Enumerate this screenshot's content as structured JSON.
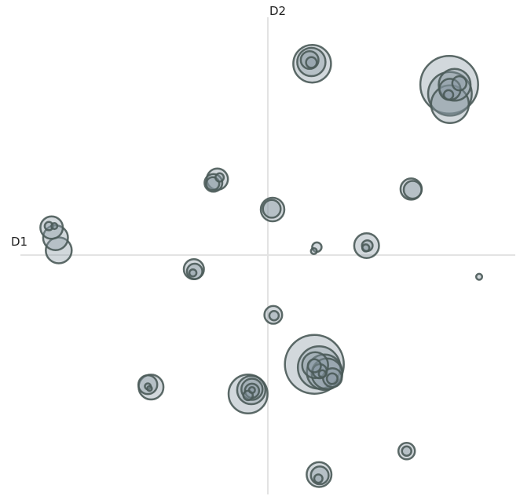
{
  "chart_data": {
    "type": "scatter",
    "title": "",
    "xlabel": "D1",
    "ylabel": "D2",
    "xlim": [
      -1.0,
      1.0
    ],
    "ylim": [
      -1.0,
      1.0
    ],
    "grid": false,
    "legend": "none",
    "colors": {
      "bubble_fill": "#8a98a2",
      "bubble_stroke": "#4a5a58",
      "axis": "#e3e3e3"
    },
    "size_unit": "relative radius",
    "points": [
      {
        "x": 0.179,
        "y": 0.774,
        "r": 3.2
      },
      {
        "x": 0.176,
        "y": 0.781,
        "r": 2.4
      },
      {
        "x": 0.169,
        "y": 0.789,
        "r": 1.5
      },
      {
        "x": 0.176,
        "y": 0.779,
        "r": 0.9
      },
      {
        "x": 0.733,
        "y": 0.689,
        "r": 4.9
      },
      {
        "x": 0.736,
        "y": 0.652,
        "r": 3.7
      },
      {
        "x": 0.736,
        "y": 0.61,
        "r": 3.2
      },
      {
        "x": 0.755,
        "y": 0.689,
        "r": 2.7
      },
      {
        "x": 0.736,
        "y": 0.67,
        "r": 1.8
      },
      {
        "x": 0.774,
        "y": 0.695,
        "r": 1.2
      },
      {
        "x": 0.73,
        "y": 0.648,
        "r": 0.8
      },
      {
        "x": -0.204,
        "y": 0.307,
        "r": 1.8
      },
      {
        "x": -0.22,
        "y": 0.292,
        "r": 1.5
      },
      {
        "x": -0.223,
        "y": 0.289,
        "r": 1.1
      },
      {
        "x": -0.195,
        "y": 0.314,
        "r": 0.7
      },
      {
        "x": 0.579,
        "y": 0.267,
        "r": 1.8
      },
      {
        "x": 0.585,
        "y": 0.264,
        "r": 1.5
      },
      {
        "x": 0.019,
        "y": 0.184,
        "r": 2.0
      },
      {
        "x": 0.016,
        "y": 0.187,
        "r": 1.5
      },
      {
        "x": -0.874,
        "y": 0.111,
        "r": 1.9
      },
      {
        "x": -0.858,
        "y": 0.07,
        "r": 2.1
      },
      {
        "x": -0.845,
        "y": 0.019,
        "r": 2.2
      },
      {
        "x": -0.885,
        "y": 0.117,
        "r": 0.7
      },
      {
        "x": -0.863,
        "y": 0.117,
        "r": 0.5
      },
      {
        "x": 0.198,
        "y": 0.032,
        "r": 0.8
      },
      {
        "x": 0.186,
        "y": 0.016,
        "r": 0.5
      },
      {
        "x": 0.399,
        "y": 0.038,
        "r": 2.1
      },
      {
        "x": 0.402,
        "y": 0.038,
        "r": 0.9
      },
      {
        "x": 0.396,
        "y": 0.029,
        "r": 0.6
      },
      {
        "x": 0.854,
        "y": -0.088,
        "r": 0.5
      },
      {
        "x": -0.299,
        "y": -0.057,
        "r": 1.7
      },
      {
        "x": -0.296,
        "y": -0.066,
        "r": 1.3
      },
      {
        "x": -0.303,
        "y": -0.072,
        "r": 0.6
      },
      {
        "x": 0.022,
        "y": -0.242,
        "r": 1.5
      },
      {
        "x": 0.025,
        "y": -0.245,
        "r": 0.8
      },
      {
        "x": 0.188,
        "y": -0.442,
        "r": 5.0
      },
      {
        "x": 0.207,
        "y": -0.455,
        "r": 3.6
      },
      {
        "x": 0.229,
        "y": -0.474,
        "r": 3.0
      },
      {
        "x": 0.239,
        "y": -0.48,
        "r": 2.6
      },
      {
        "x": 0.191,
        "y": -0.445,
        "r": 2.2
      },
      {
        "x": 0.261,
        "y": -0.496,
        "r": 1.6
      },
      {
        "x": 0.21,
        "y": -0.47,
        "r": 1.2
      },
      {
        "x": 0.188,
        "y": -0.448,
        "r": 1.1
      },
      {
        "x": 0.26,
        "y": -0.5,
        "r": 0.9
      },
      {
        "x": 0.22,
        "y": -0.48,
        "r": 0.6
      },
      {
        "x": -0.472,
        "y": -0.534,
        "r": 2.1
      },
      {
        "x": -0.485,
        "y": -0.524,
        "r": 1.6
      },
      {
        "x": -0.485,
        "y": -0.531,
        "r": 0.5
      },
      {
        "x": -0.478,
        "y": -0.54,
        "r": 0.4
      },
      {
        "x": -0.08,
        "y": -0.562,
        "r": 3.3
      },
      {
        "x": -0.067,
        "y": -0.546,
        "r": 2.4
      },
      {
        "x": -0.064,
        "y": -0.543,
        "r": 1.8
      },
      {
        "x": -0.064,
        "y": -0.549,
        "r": 1.2
      },
      {
        "x": -0.08,
        "y": -0.568,
        "r": 0.8
      },
      {
        "x": -0.064,
        "y": -0.546,
        "r": 0.5
      },
      {
        "x": 0.561,
        "y": -0.793,
        "r": 1.4
      },
      {
        "x": 0.561,
        "y": -0.793,
        "r": 0.8
      },
      {
        "x": 0.207,
        "y": -0.888,
        "r": 2.1
      },
      {
        "x": 0.21,
        "y": -0.891,
        "r": 1.5
      },
      {
        "x": 0.204,
        "y": -0.904,
        "r": 0.7
      }
    ]
  }
}
